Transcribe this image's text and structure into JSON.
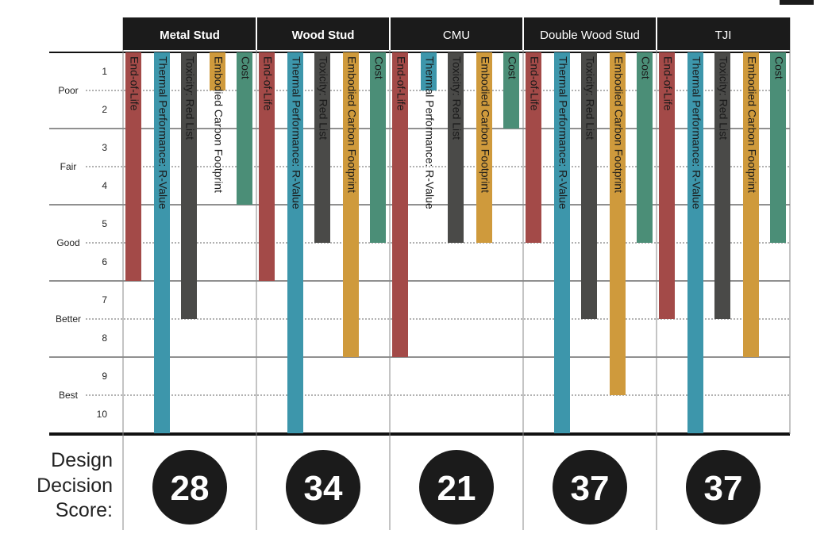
{
  "chart_data": {
    "type": "bar",
    "categories": [
      "Metal Stud",
      "Wood Stud",
      "CMU",
      "Double Wood Stud",
      "TJI"
    ],
    "category_bold": [
      true,
      true,
      false,
      false,
      false
    ],
    "series": [
      {
        "name": "End-of-Life",
        "color": "#a34a48",
        "values": [
          6,
          6,
          8,
          5,
          7
        ]
      },
      {
        "name": "Thermal Performance: R-Value",
        "color": "#3d96ab",
        "values": [
          10,
          10,
          1,
          10,
          10
        ]
      },
      {
        "name": "Toxicity: Red List",
        "color": "#4a4a48",
        "values": [
          7,
          5,
          5,
          7,
          7
        ]
      },
      {
        "name": "Embodied Carbon Footprint",
        "color": "#cf9a3c",
        "values": [
          1,
          8,
          5,
          9,
          8
        ]
      },
      {
        "name": "Cost",
        "color": "#4b8e77",
        "values": [
          4,
          5,
          2,
          5,
          5
        ]
      }
    ],
    "y_ticks": [
      "1",
      "2",
      "3",
      "4",
      "5",
      "6",
      "7",
      "8",
      "9",
      "10"
    ],
    "ylim": [
      0,
      10
    ],
    "rating_bands": [
      "Poor",
      "Fair",
      "Good",
      "Better",
      "Best"
    ],
    "scores": [
      "28",
      "34",
      "21",
      "37",
      "37"
    ],
    "score_label": [
      "Design",
      "Decision",
      "Score:"
    ]
  }
}
